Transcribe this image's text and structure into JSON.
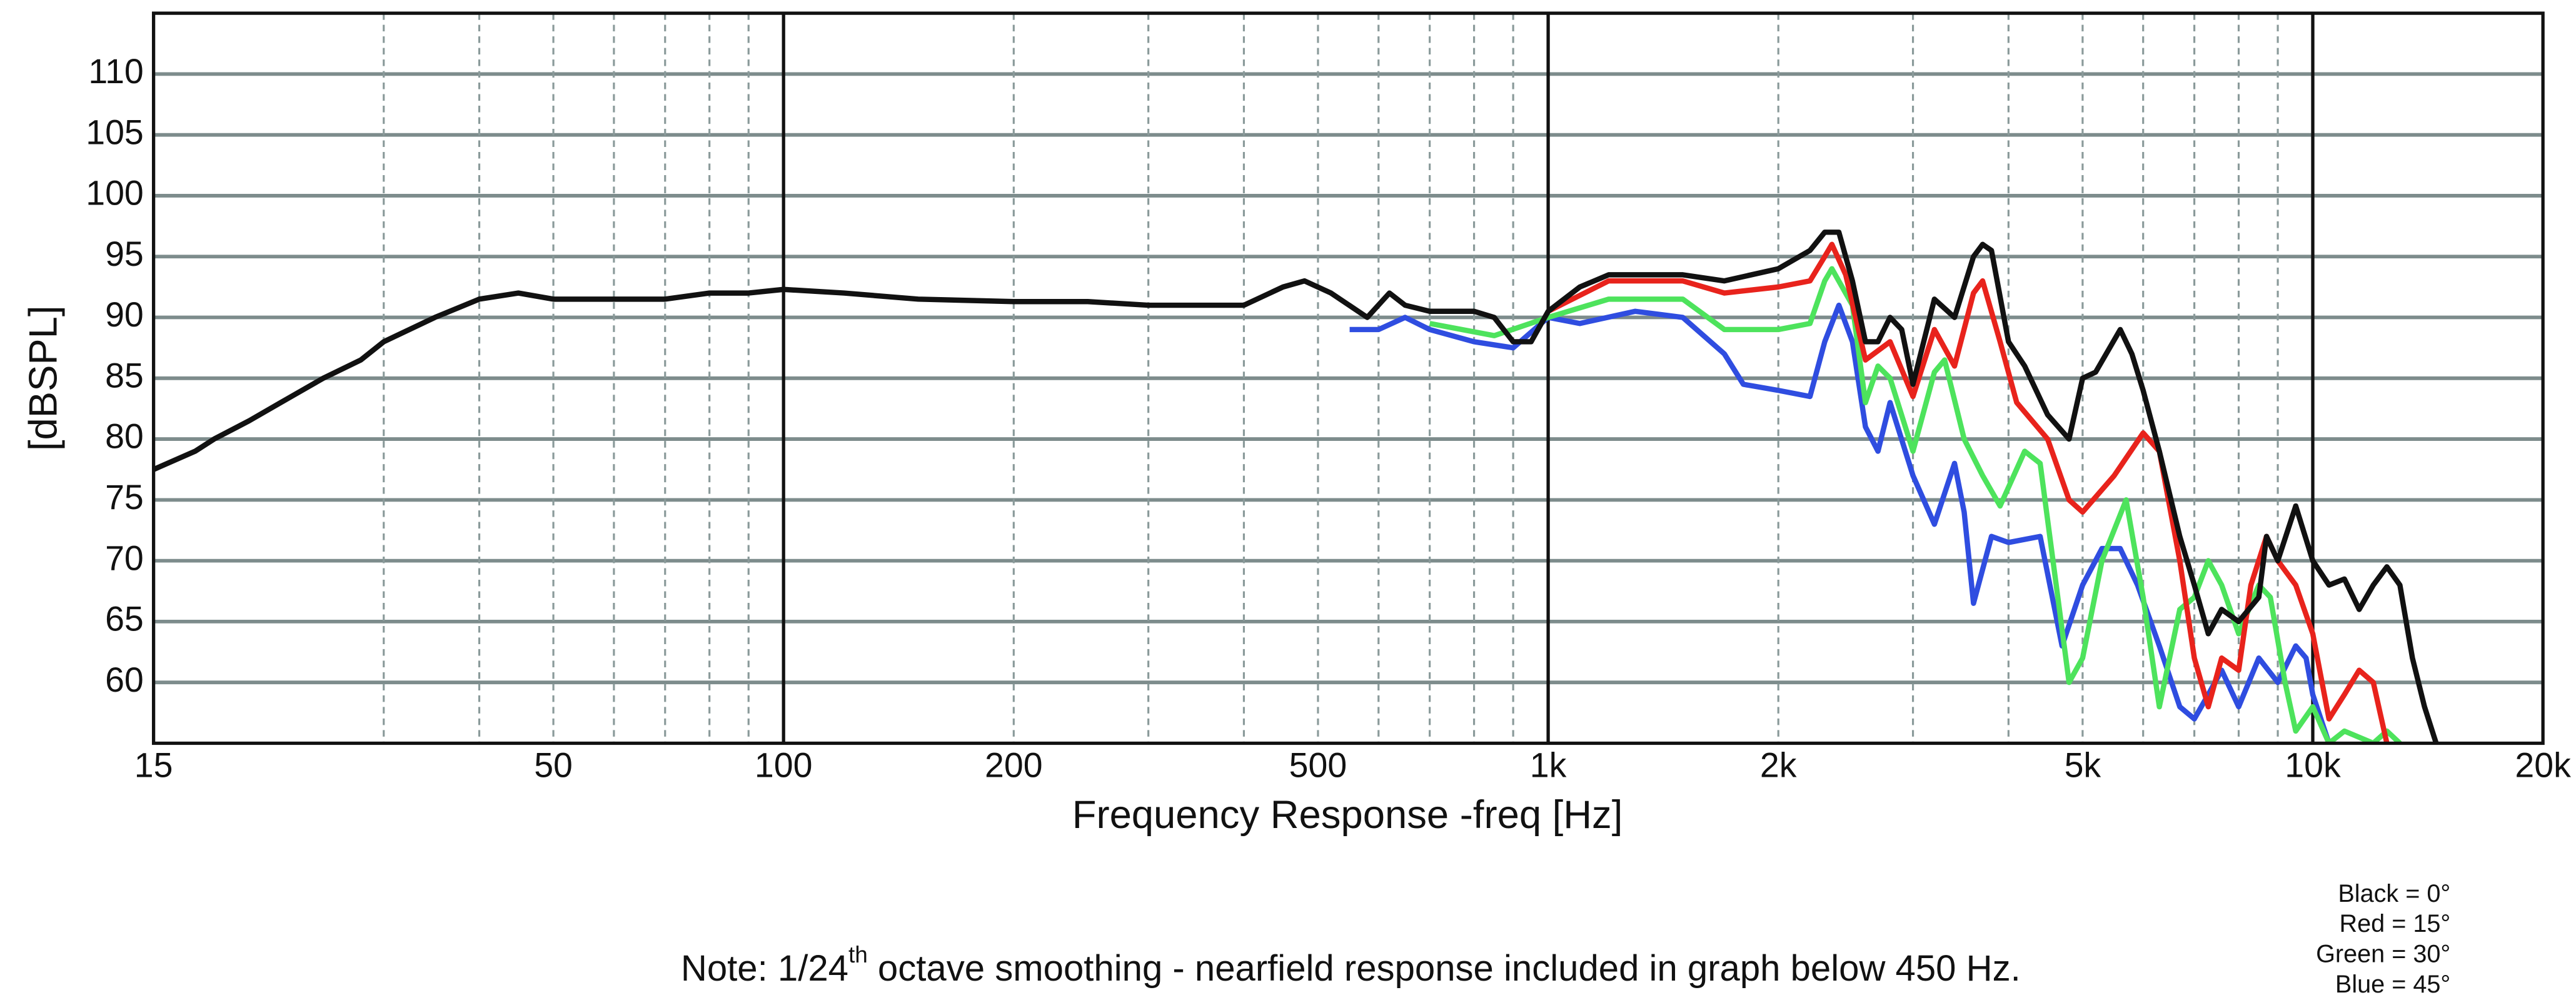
{
  "chart_data": {
    "type": "line",
    "xlabel": "Frequency Response -freq [Hz]",
    "ylabel": "[dBSPL]",
    "note": [
      "Note: 1/24",
      "th",
      " octave smoothing - nearfield response included in graph below 450 Hz."
    ],
    "xscale": "log",
    "xlim": [
      15,
      20000
    ],
    "ylim": [
      55,
      115
    ],
    "xticks": [
      15,
      50,
      100,
      200,
      500,
      {
        "value": 1000,
        "label": "1k"
      },
      {
        "value": 2000,
        "label": "2k"
      },
      {
        "value": 5000,
        "label": "5k"
      },
      {
        "value": 10000,
        "label": "10k"
      },
      {
        "value": 20000,
        "label": "20k"
      }
    ],
    "yticks": [
      60,
      65,
      70,
      75,
      80,
      85,
      90,
      95,
      100,
      105,
      110
    ],
    "xminorgrid": [
      30,
      40,
      50,
      60,
      70,
      80,
      90,
      200,
      300,
      400,
      500,
      600,
      700,
      800,
      900,
      2000,
      3000,
      4000,
      5000,
      6000,
      7000,
      8000,
      9000
    ],
    "xmajorgrid": [
      100,
      1000,
      10000
    ],
    "grid": true,
    "legend": "lower right",
    "series": [
      {
        "name": "Black = 0°",
        "color": "#111111",
        "x": [
          15,
          17,
          18,
          20,
          22,
          25,
          28,
          30,
          35,
          40,
          45,
          50,
          60,
          70,
          80,
          90,
          100,
          120,
          150,
          200,
          250,
          300,
          350,
          400,
          450,
          480,
          520,
          580,
          620,
          650,
          700,
          800,
          850,
          900,
          950,
          1000,
          1100,
          1200,
          1500,
          1700,
          2000,
          2200,
          2300,
          2400,
          2500,
          2600,
          2700,
          2800,
          2900,
          3000,
          3200,
          3400,
          3600,
          3700,
          3800,
          4000,
          4200,
          4500,
          4800,
          5000,
          5200,
          5600,
          5800,
          6000,
          6300,
          6700,
          7000,
          7300,
          7600,
          8000,
          8500,
          8700,
          9000,
          9500,
          10000,
          10500,
          11000,
          11500,
          12000,
          12500,
          13000,
          13500,
          14000,
          14500
        ],
        "values": [
          77.5,
          79,
          80,
          81.5,
          83,
          85,
          86.5,
          88,
          90,
          91.5,
          92,
          91.5,
          91.5,
          91.5,
          92,
          92,
          92.3,
          92,
          91.5,
          91.3,
          91.3,
          91,
          91,
          91,
          92.5,
          93,
          92,
          90,
          92,
          91,
          90.5,
          90.5,
          90,
          88,
          88,
          90.5,
          92.5,
          93.5,
          93.5,
          93,
          94,
          95.5,
          97,
          97,
          93,
          88,
          88,
          90,
          89,
          84.5,
          91.5,
          90,
          95,
          96,
          95.5,
          88,
          86,
          82,
          80,
          85,
          85.5,
          89,
          87,
          84,
          79,
          72,
          68,
          64,
          66,
          65,
          67,
          72,
          70,
          74.5,
          70,
          68,
          68.5,
          66,
          68,
          69.5,
          68,
          62,
          58,
          55
        ]
      },
      {
        "name": "Red = 15°",
        "color": "#e8231c",
        "x": [
          1000,
          1200,
          1500,
          1700,
          2000,
          2200,
          2300,
          2350,
          2450,
          2600,
          2800,
          3000,
          3200,
          3400,
          3600,
          3700,
          3900,
          4100,
          4500,
          4800,
          5000,
          5500,
          6000,
          6300,
          6700,
          7000,
          7300,
          7600,
          8000,
          8300,
          8700,
          9000,
          9500,
          10000,
          10500,
          11000,
          11500,
          12000,
          12500
        ],
        "values": [
          90.5,
          93,
          93,
          92,
          92.5,
          93,
          95,
          96,
          93.5,
          86.5,
          88,
          83.5,
          89,
          86,
          92,
          93,
          88,
          83,
          80,
          75,
          74,
          77,
          80.5,
          79,
          70,
          62,
          58,
          62,
          61,
          68,
          72,
          70,
          68,
          64,
          57,
          59,
          61,
          60,
          55
        ]
      },
      {
        "name": "Green = 30°",
        "color": "#4de35c",
        "x": [
          700,
          850,
          1000,
          1200,
          1500,
          1700,
          2000,
          2200,
          2300,
          2350,
          2500,
          2600,
          2700,
          2800,
          3000,
          3200,
          3300,
          3500,
          3700,
          3900,
          4200,
          4400,
          4800,
          5000,
          5300,
          5700,
          6000,
          6300,
          6700,
          7000,
          7300,
          7600,
          8000,
          8500,
          8800,
          9200,
          9500,
          10000,
          10500,
          11000,
          12000,
          12500,
          13000
        ],
        "values": [
          89.5,
          88.5,
          90,
          91.5,
          91.5,
          89,
          89,
          89.5,
          93,
          94,
          91,
          83,
          86,
          85,
          79,
          85.5,
          86.5,
          80,
          77,
          74.5,
          79,
          78,
          60,
          62,
          70,
          75,
          67,
          58,
          66,
          67,
          70,
          68,
          64,
          68,
          67,
          60,
          56,
          58,
          55,
          56,
          55,
          56,
          55
        ]
      },
      {
        "name": "Blue = 45°",
        "color": "#2f4de0",
        "x": [
          550,
          600,
          650,
          700,
          800,
          900,
          1000,
          1100,
          1300,
          1500,
          1700,
          1800,
          2000,
          2200,
          2300,
          2400,
          2500,
          2600,
          2700,
          2800,
          3000,
          3200,
          3400,
          3500,
          3600,
          3800,
          4000,
          4400,
          4700,
          5000,
          5300,
          5600,
          5900,
          6300,
          6700,
          7000,
          7300,
          7600,
          8000,
          8500,
          9000,
          9500,
          9800,
          10000,
          10500
        ],
        "values": [
          89,
          89,
          90,
          89,
          88,
          87.5,
          90,
          89.5,
          90.5,
          90,
          87,
          84.5,
          84,
          83.5,
          88,
          91,
          88,
          81,
          79,
          83,
          77,
          73,
          78,
          74,
          66.5,
          72,
          71.5,
          72,
          63,
          68,
          71,
          71,
          68,
          63,
          58,
          57,
          59,
          61,
          58,
          62,
          60,
          63,
          62,
          59,
          55
        ]
      }
    ]
  }
}
